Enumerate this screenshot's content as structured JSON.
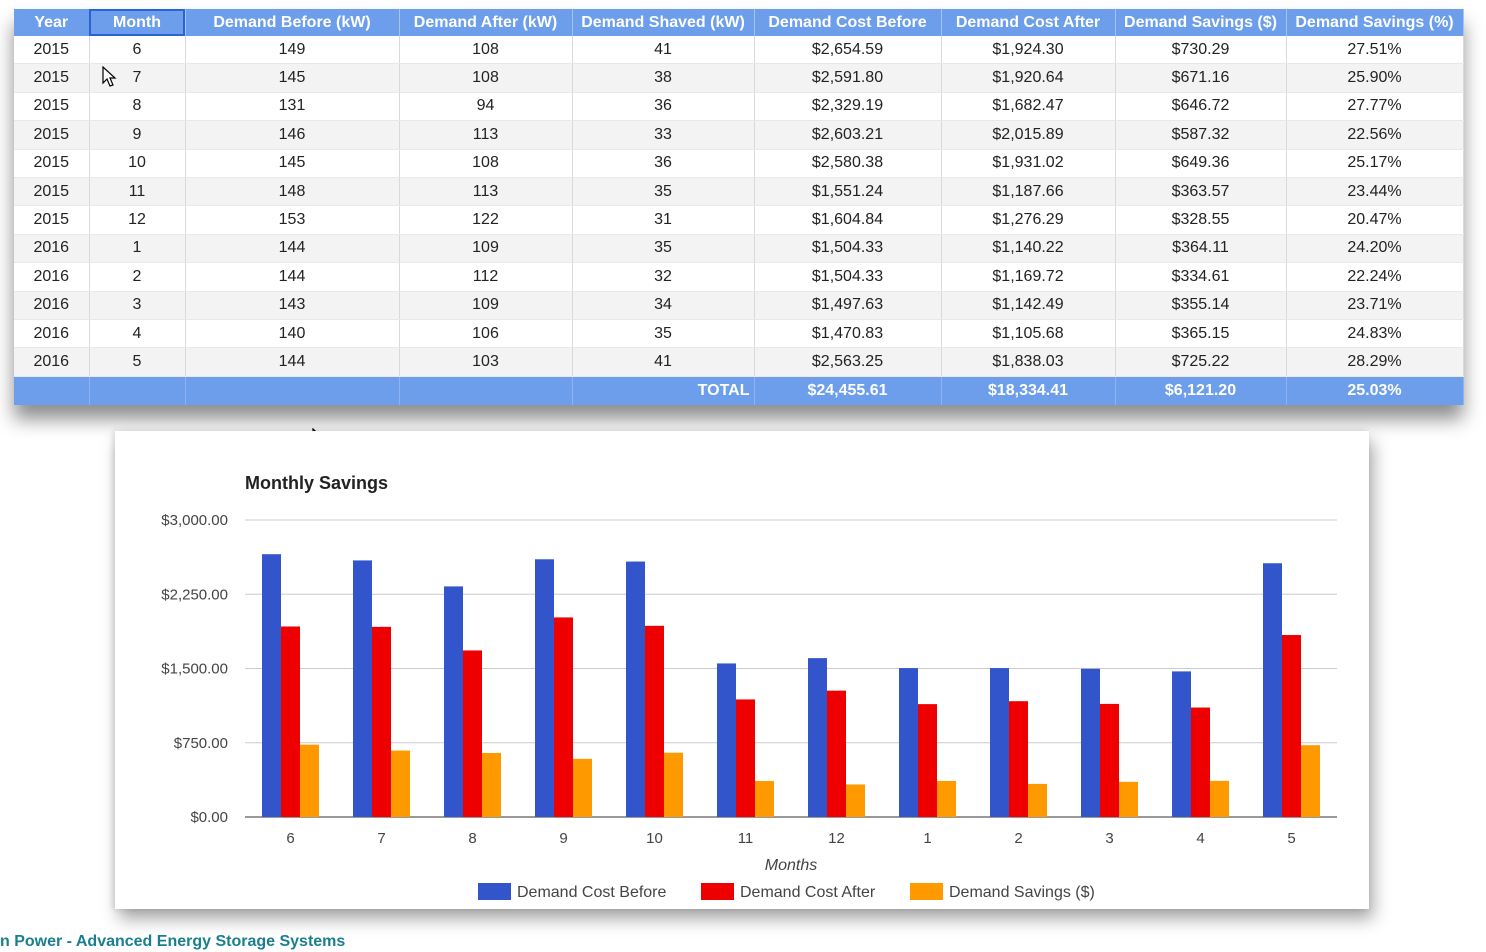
{
  "table": {
    "headers": [
      "Year",
      "Month",
      "Demand Before (kW)",
      "Demand After (kW)",
      "Demand Shaved (kW)",
      "Demand Cost Before",
      "Demand Cost After",
      "Demand Savings ($)",
      "Demand Savings (%)"
    ],
    "rows": [
      [
        "2015",
        "6",
        "149",
        "108",
        "41",
        "$2,654.59",
        "$1,924.30",
        "$730.29",
        "27.51%"
      ],
      [
        "2015",
        "7",
        "145",
        "108",
        "38",
        "$2,591.80",
        "$1,920.64",
        "$671.16",
        "25.90%"
      ],
      [
        "2015",
        "8",
        "131",
        "94",
        "36",
        "$2,329.19",
        "$1,682.47",
        "$646.72",
        "27.77%"
      ],
      [
        "2015",
        "9",
        "146",
        "113",
        "33",
        "$2,603.21",
        "$2,015.89",
        "$587.32",
        "22.56%"
      ],
      [
        "2015",
        "10",
        "145",
        "108",
        "36",
        "$2,580.38",
        "$1,931.02",
        "$649.36",
        "25.17%"
      ],
      [
        "2015",
        "11",
        "148",
        "113",
        "35",
        "$1,551.24",
        "$1,187.66",
        "$363.57",
        "23.44%"
      ],
      [
        "2015",
        "12",
        "153",
        "122",
        "31",
        "$1,604.84",
        "$1,276.29",
        "$328.55",
        "20.47%"
      ],
      [
        "2016",
        "1",
        "144",
        "109",
        "35",
        "$1,504.33",
        "$1,140.22",
        "$364.11",
        "24.20%"
      ],
      [
        "2016",
        "2",
        "144",
        "112",
        "32",
        "$1,504.33",
        "$1,169.72",
        "$334.61",
        "22.24%"
      ],
      [
        "2016",
        "3",
        "143",
        "109",
        "34",
        "$1,497.63",
        "$1,142.49",
        "$355.14",
        "23.71%"
      ],
      [
        "2016",
        "4",
        "140",
        "106",
        "35",
        "$1,470.83",
        "$1,105.68",
        "$365.15",
        "24.83%"
      ],
      [
        "2016",
        "5",
        "144",
        "103",
        "41",
        "$2,563.25",
        "$1,838.03",
        "$725.22",
        "28.29%"
      ]
    ],
    "total": {
      "label": "TOTAL",
      "cost_before": "$24,455.61",
      "cost_after": "$18,334.41",
      "savings": "$6,121.20",
      "savings_pct": "25.03%"
    }
  },
  "chart_data": {
    "type": "bar",
    "title": "Monthly Savings",
    "xlabel": "Months",
    "ylabel": "",
    "categories": [
      "6",
      "7",
      "8",
      "9",
      "10",
      "11",
      "12",
      "1",
      "2",
      "3",
      "4",
      "5"
    ],
    "series": [
      {
        "name": "Demand Cost Before",
        "color": "#3355cc",
        "values": [
          2654.59,
          2591.8,
          2329.19,
          2603.21,
          2580.38,
          1551.24,
          1604.84,
          1504.33,
          1504.33,
          1497.63,
          1470.83,
          2563.25
        ]
      },
      {
        "name": "Demand Cost After",
        "color": "#ee0000",
        "values": [
          1924.3,
          1920.64,
          1682.47,
          2015.89,
          1931.02,
          1187.66,
          1276.29,
          1140.22,
          1169.72,
          1142.49,
          1105.68,
          1838.03
        ]
      },
      {
        "name": "Demand Savings ($)",
        "color": "#ff9900",
        "values": [
          730.29,
          671.16,
          646.72,
          587.32,
          649.36,
          363.57,
          328.55,
          364.11,
          334.61,
          355.14,
          365.15,
          725.22
        ]
      }
    ],
    "ylim": [
      0,
      3000
    ],
    "yticks": [
      0,
      750,
      1500,
      2250,
      3000
    ],
    "ytick_labels": [
      "$0.00",
      "$750.00",
      "$1,500.00",
      "$2,250.00",
      "$3,000.00"
    ],
    "grid": true,
    "legend_position": "bottom"
  },
  "footer": "n Power - Advanced Energy Storage Systems"
}
